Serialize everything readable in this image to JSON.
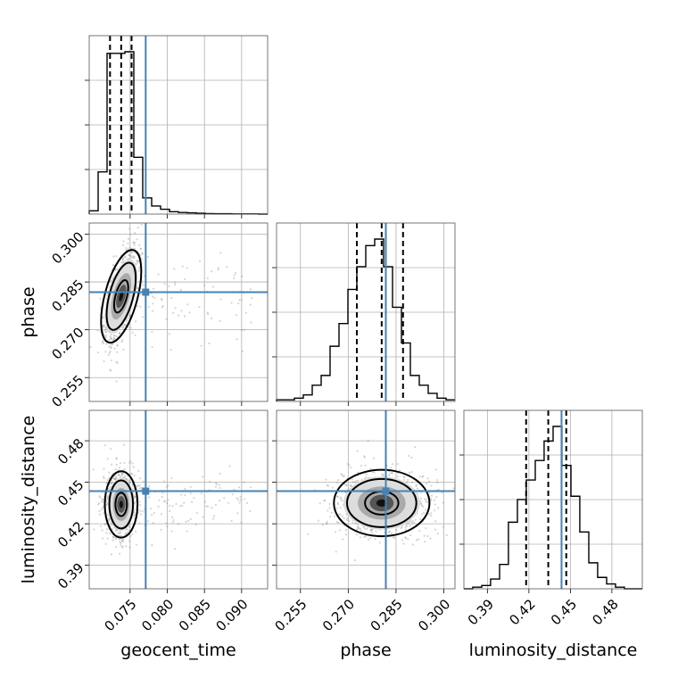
{
  "chart_data": {
    "type": "corner",
    "parameters": [
      "geocent_time",
      "phase",
      "luminosity_distance"
    ],
    "axis_labels": {
      "geocent_time": "geocent_time",
      "phase": "phase",
      "luminosity_distance": "luminosity_distance"
    },
    "ranges": {
      "geocent_time": [
        0.0695,
        0.0935
      ],
      "phase": [
        0.2475,
        0.3035
      ],
      "luminosity_distance": [
        0.373,
        0.502
      ]
    },
    "ticks": {
      "geocent_time": [
        0.075,
        0.08,
        0.085,
        0.09
      ],
      "phase": [
        0.255,
        0.27,
        0.285,
        0.3
      ],
      "luminosity_distance": [
        0.39,
        0.42,
        0.45,
        0.48
      ]
    },
    "tick_labels": {
      "geocent_time": [
        "0.075",
        "0.080",
        "0.085",
        "0.090"
      ],
      "phase": [
        "0.255",
        "0.270",
        "0.285",
        "0.300"
      ],
      "luminosity_distance": [
        "0.39",
        "0.42",
        "0.45",
        "0.48"
      ]
    },
    "truths": {
      "geocent_time": 0.0771,
      "phase": 0.2818,
      "luminosity_distance": 0.4436
    },
    "quantiles": {
      "geocent_time": [
        0.0723,
        0.0738,
        0.0752
      ],
      "phase": [
        0.2727,
        0.2805,
        0.2872
      ],
      "luminosity_distance": [
        0.418,
        0.434,
        0.447
      ]
    },
    "histograms": {
      "geocent_time": {
        "edges": [
          0.0695,
          0.0707,
          0.0719,
          0.0731,
          0.0743,
          0.0755,
          0.0767,
          0.0779,
          0.0791,
          0.0803,
          0.0815,
          0.0827,
          0.0839,
          0.0851,
          0.0863,
          0.0875,
          0.0887,
          0.0899,
          0.0911,
          0.0923,
          0.0935
        ],
        "counts": [
          0.02,
          0.26,
          0.99,
          0.99,
          1.0,
          0.35,
          0.1,
          0.05,
          0.03,
          0.015,
          0.01,
          0.008,
          0.005,
          0.003,
          0.002,
          0.002,
          0.001,
          0.001,
          0.001,
          0.0
        ]
      },
      "phase": {
        "edges": [
          0.2475,
          0.2503,
          0.2531,
          0.2559,
          0.2587,
          0.2615,
          0.2643,
          0.2671,
          0.2699,
          0.2727,
          0.2755,
          0.2783,
          0.2811,
          0.2839,
          0.2867,
          0.2895,
          0.2923,
          0.2951,
          0.2979,
          0.3007,
          0.3035
        ],
        "counts": [
          0.01,
          0.01,
          0.02,
          0.04,
          0.1,
          0.16,
          0.34,
          0.48,
          0.69,
          0.83,
          0.96,
          1.0,
          0.83,
          0.58,
          0.36,
          0.16,
          0.1,
          0.05,
          0.02,
          0.01
        ]
      },
      "luminosity_distance": {
        "edges": [
          0.373,
          0.3794,
          0.3859,
          0.3923,
          0.3988,
          0.4052,
          0.4117,
          0.4181,
          0.4246,
          0.431,
          0.4375,
          0.4439,
          0.4504,
          0.4568,
          0.4633,
          0.4697,
          0.4762,
          0.4826,
          0.4891,
          0.4955,
          0.502
        ],
        "counts": [
          0.0,
          0.01,
          0.02,
          0.06,
          0.15,
          0.41,
          0.55,
          0.67,
          0.79,
          0.91,
          1.0,
          0.76,
          0.57,
          0.35,
          0.16,
          0.07,
          0.03,
          0.01,
          0.0,
          0.0
        ]
      }
    },
    "posterior_2d": {
      "phase_vs_geocent_time": {
        "mean": [
          0.0738,
          0.2805
        ],
        "sd": [
          0.0011,
          0.0075
        ],
        "corr": 0.6
      },
      "luminosity_distance_vs_geocent_time": {
        "mean": [
          0.0738,
          0.434
        ],
        "sd": [
          0.0011,
          0.012
        ],
        "corr": 0.0
      },
      "luminosity_distance_vs_phase": {
        "mean": [
          0.2805,
          0.435
        ],
        "sd": [
          0.0075,
          0.012
        ],
        "corr": 0.05
      }
    },
    "grid": true,
    "colors": {
      "truth": "#4682b4",
      "lines": "#000000",
      "points": "#888888"
    }
  }
}
